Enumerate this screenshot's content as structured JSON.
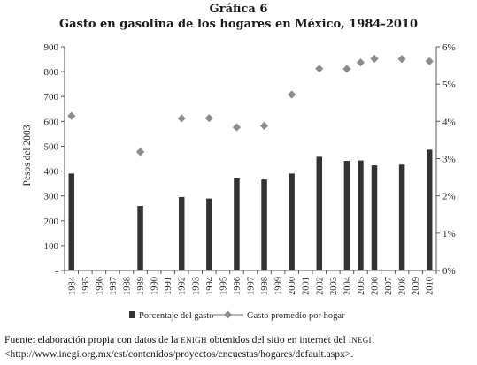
{
  "figure": {
    "label": "Gráfica 6",
    "title": "Gasto en gasolina de los hogares en México, 1984-2010"
  },
  "chart_data": {
    "type": "bar",
    "categories": [
      "1984",
      "1985",
      "1986",
      "1987",
      "1988",
      "1989",
      "1990",
      "1991",
      "1992",
      "1993",
      "1994",
      "1995",
      "1996",
      "1997",
      "1998",
      "1999",
      "2000",
      "2001",
      "2002",
      "2003",
      "2004",
      "2005",
      "2006",
      "2007",
      "2008",
      "2009",
      "2010"
    ],
    "ylabel_left": "Pesos del 2003",
    "y_left_ticks": [
      "-",
      "100",
      "200",
      "300",
      "400",
      "500",
      "600",
      "700",
      "800",
      "900"
    ],
    "ylim_left": [
      0,
      900
    ],
    "y_right_ticks": [
      "0%",
      "1%",
      "2%",
      "3%",
      "4%",
      "5%",
      "6%"
    ],
    "ylim_right": [
      0,
      6
    ],
    "series": [
      {
        "name": "Porcentaje del gasto",
        "kind": "bar",
        "axis": "right",
        "color": "#333333",
        "values": [
          2.6,
          null,
          null,
          null,
          null,
          1.73,
          null,
          null,
          1.97,
          null,
          1.93,
          null,
          2.49,
          null,
          2.44,
          null,
          2.6,
          null,
          3.05,
          null,
          2.94,
          2.95,
          2.82,
          null,
          2.84,
          null,
          3.24
        ]
      },
      {
        "name": "Gasto promedio por hogar",
        "kind": "line-marker",
        "axis": "left",
        "color": "#8c8c8c",
        "values": [
          622,
          null,
          null,
          null,
          null,
          477,
          null,
          null,
          612,
          null,
          613,
          null,
          576,
          null,
          582,
          null,
          708,
          null,
          812,
          null,
          811,
          837,
          852,
          null,
          851,
          null,
          842
        ]
      }
    ],
    "grid": false,
    "legend_position": "bottom"
  },
  "source": {
    "prefix": "Fuente: elaboración propia con datos de la ",
    "enigh": "ENIGH",
    "middle": " obtenidos del sitio en internet del ",
    "inegi": "INEGI",
    "suffix": ": <http://www.inegi.org.mx/est/contenidos/proyectos/encuestas/hogares/default.aspx>."
  }
}
